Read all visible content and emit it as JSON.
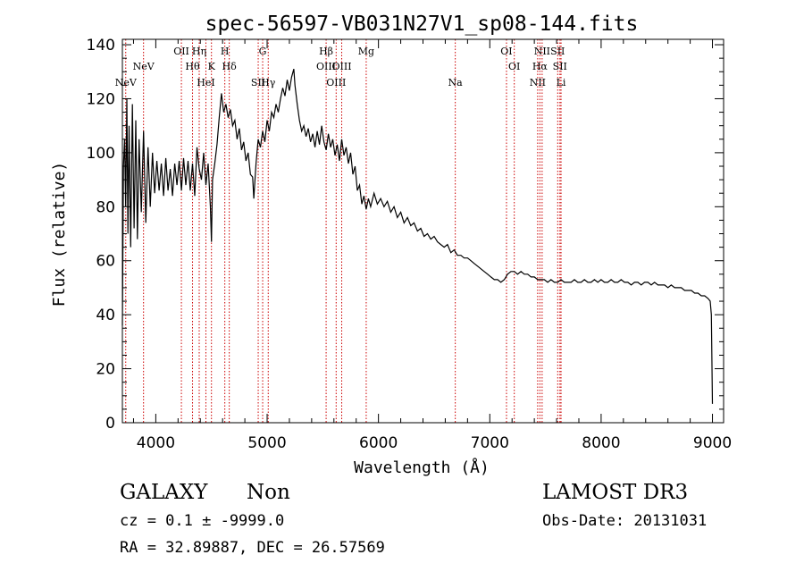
{
  "chart_data": {
    "type": "line",
    "title": "spec-56597-VB031N27V1_sp08-144.fits",
    "xlabel": "Wavelength (Å)",
    "ylabel": "Flux (relative)",
    "xlim": [
      3700,
      9100
    ],
    "ylim": [
      0,
      142
    ],
    "x_ticks": [
      4000,
      5000,
      6000,
      7000,
      8000,
      9000
    ],
    "x_tick_labels": [
      "4000",
      "5000",
      "6000",
      "7000",
      "8000",
      "9000"
    ],
    "y_ticks": [
      0,
      20,
      40,
      60,
      80,
      100,
      120,
      140
    ],
    "y_tick_labels": [
      "0",
      "20",
      "40",
      "60",
      "80",
      "100",
      "120",
      "140"
    ],
    "line_color": "#000000",
    "marker_color": "#cc0000",
    "spectrum_points": [
      [
        3700,
        36
      ],
      [
        3710,
        95
      ],
      [
        3720,
        105
      ],
      [
        3730,
        80
      ],
      [
        3740,
        120
      ],
      [
        3750,
        70
      ],
      [
        3760,
        110
      ],
      [
        3775,
        65
      ],
      [
        3790,
        118
      ],
      [
        3805,
        72
      ],
      [
        3820,
        112
      ],
      [
        3835,
        68
      ],
      [
        3850,
        105
      ],
      [
        3870,
        78
      ],
      [
        3890,
        108
      ],
      [
        3910,
        74
      ],
      [
        3930,
        102
      ],
      [
        3950,
        80
      ],
      [
        3970,
        100
      ],
      [
        3990,
        85
      ],
      [
        4010,
        97
      ],
      [
        4030,
        86
      ],
      [
        4050,
        96
      ],
      [
        4070,
        84
      ],
      [
        4090,
        98
      ],
      [
        4110,
        86
      ],
      [
        4130,
        94
      ],
      [
        4150,
        84
      ],
      [
        4170,
        96
      ],
      [
        4190,
        88
      ],
      [
        4210,
        97
      ],
      [
        4230,
        86
      ],
      [
        4250,
        98
      ],
      [
        4270,
        88
      ],
      [
        4290,
        97
      ],
      [
        4310,
        86
      ],
      [
        4330,
        96
      ],
      [
        4350,
        84
      ],
      [
        4370,
        102
      ],
      [
        4390,
        94
      ],
      [
        4410,
        90
      ],
      [
        4430,
        100
      ],
      [
        4450,
        88
      ],
      [
        4470,
        96
      ],
      [
        4490,
        80
      ],
      [
        4500,
        67
      ],
      [
        4510,
        90
      ],
      [
        4530,
        96
      ],
      [
        4550,
        103
      ],
      [
        4570,
        113
      ],
      [
        4590,
        122
      ],
      [
        4610,
        115
      ],
      [
        4630,
        118
      ],
      [
        4650,
        113
      ],
      [
        4670,
        116
      ],
      [
        4690,
        110
      ],
      [
        4710,
        112
      ],
      [
        4730,
        105
      ],
      [
        4750,
        109
      ],
      [
        4770,
        101
      ],
      [
        4790,
        104
      ],
      [
        4810,
        97
      ],
      [
        4830,
        100
      ],
      [
        4850,
        92
      ],
      [
        4870,
        91
      ],
      [
        4880,
        83
      ],
      [
        4900,
        96
      ],
      [
        4920,
        105
      ],
      [
        4940,
        102
      ],
      [
        4960,
        108
      ],
      [
        4980,
        104
      ],
      [
        5000,
        112
      ],
      [
        5020,
        108
      ],
      [
        5040,
        115
      ],
      [
        5060,
        113
      ],
      [
        5080,
        118
      ],
      [
        5100,
        115
      ],
      [
        5120,
        120
      ],
      [
        5140,
        124
      ],
      [
        5160,
        121
      ],
      [
        5180,
        127
      ],
      [
        5200,
        123
      ],
      [
        5220,
        128
      ],
      [
        5240,
        131
      ],
      [
        5250,
        125
      ],
      [
        5270,
        118
      ],
      [
        5290,
        112
      ],
      [
        5310,
        108
      ],
      [
        5330,
        110
      ],
      [
        5350,
        106
      ],
      [
        5370,
        109
      ],
      [
        5390,
        104
      ],
      [
        5410,
        107
      ],
      [
        5430,
        102
      ],
      [
        5450,
        108
      ],
      [
        5470,
        103
      ],
      [
        5490,
        110
      ],
      [
        5510,
        104
      ],
      [
        5530,
        101
      ],
      [
        5550,
        107
      ],
      [
        5570,
        102
      ],
      [
        5590,
        105
      ],
      [
        5610,
        99
      ],
      [
        5630,
        103
      ],
      [
        5650,
        97
      ],
      [
        5670,
        105
      ],
      [
        5690,
        99
      ],
      [
        5710,
        102
      ],
      [
        5730,
        96
      ],
      [
        5750,
        100
      ],
      [
        5770,
        92
      ],
      [
        5790,
        95
      ],
      [
        5810,
        86
      ],
      [
        5830,
        88
      ],
      [
        5850,
        81
      ],
      [
        5870,
        84
      ],
      [
        5890,
        79
      ],
      [
        5910,
        83
      ],
      [
        5930,
        80
      ],
      [
        5960,
        85
      ],
      [
        5990,
        81
      ],
      [
        6020,
        83
      ],
      [
        6050,
        80
      ],
      [
        6080,
        82
      ],
      [
        6110,
        78
      ],
      [
        6140,
        80
      ],
      [
        6170,
        76
      ],
      [
        6200,
        78
      ],
      [
        6230,
        74
      ],
      [
        6260,
        76
      ],
      [
        6290,
        73
      ],
      [
        6320,
        74
      ],
      [
        6350,
        71
      ],
      [
        6380,
        72
      ],
      [
        6410,
        69
      ],
      [
        6440,
        70
      ],
      [
        6470,
        68
      ],
      [
        6500,
        69
      ],
      [
        6530,
        67
      ],
      [
        6560,
        66
      ],
      [
        6590,
        65
      ],
      [
        6620,
        66
      ],
      [
        6650,
        63
      ],
      [
        6680,
        64
      ],
      [
        6710,
        62
      ],
      [
        6740,
        62
      ],
      [
        6770,
        61
      ],
      [
        6800,
        61
      ],
      [
        6830,
        60
      ],
      [
        6860,
        59
      ],
      [
        6890,
        58
      ],
      [
        6920,
        57
      ],
      [
        6950,
        56
      ],
      [
        6980,
        55
      ],
      [
        7010,
        54
      ],
      [
        7040,
        53
      ],
      [
        7070,
        53
      ],
      [
        7100,
        52
      ],
      [
        7130,
        53
      ],
      [
        7160,
        55
      ],
      [
        7190,
        56
      ],
      [
        7220,
        56
      ],
      [
        7250,
        55
      ],
      [
        7280,
        56
      ],
      [
        7310,
        55
      ],
      [
        7340,
        55
      ],
      [
        7370,
        54
      ],
      [
        7400,
        54
      ],
      [
        7430,
        53
      ],
      [
        7460,
        53
      ],
      [
        7490,
        53
      ],
      [
        7520,
        52
      ],
      [
        7550,
        53
      ],
      [
        7580,
        52
      ],
      [
        7610,
        52
      ],
      [
        7640,
        53
      ],
      [
        7670,
        52
      ],
      [
        7700,
        52
      ],
      [
        7730,
        52
      ],
      [
        7760,
        53
      ],
      [
        7790,
        52
      ],
      [
        7820,
        52
      ],
      [
        7850,
        53
      ],
      [
        7880,
        52
      ],
      [
        7910,
        52
      ],
      [
        7940,
        53
      ],
      [
        7970,
        52
      ],
      [
        8000,
        53
      ],
      [
        8030,
        52
      ],
      [
        8060,
        52
      ],
      [
        8090,
        53
      ],
      [
        8120,
        52
      ],
      [
        8150,
        52
      ],
      [
        8180,
        53
      ],
      [
        8210,
        52
      ],
      [
        8240,
        52
      ],
      [
        8270,
        51
      ],
      [
        8300,
        52
      ],
      [
        8330,
        52
      ],
      [
        8360,
        51
      ],
      [
        8390,
        52
      ],
      [
        8420,
        52
      ],
      [
        8450,
        51
      ],
      [
        8480,
        52
      ],
      [
        8510,
        51
      ],
      [
        8540,
        51
      ],
      [
        8570,
        51
      ],
      [
        8600,
        50
      ],
      [
        8630,
        51
      ],
      [
        8660,
        50
      ],
      [
        8690,
        50
      ],
      [
        8720,
        50
      ],
      [
        8750,
        49
      ],
      [
        8780,
        49
      ],
      [
        8810,
        49
      ],
      [
        8840,
        48
      ],
      [
        8870,
        48
      ],
      [
        8900,
        47
      ],
      [
        8930,
        47
      ],
      [
        8960,
        46
      ],
      [
        8980,
        45
      ],
      [
        8990,
        40
      ],
      [
        9000,
        7
      ]
    ],
    "lines": [
      {
        "label": "NeV",
        "wavelength": 3346,
        "row": 3
      },
      {
        "label": "NeV",
        "wavelength": 3426,
        "row": 2
      },
      {
        "label": "OII",
        "wavelength": 3728,
        "row": 1
      },
      {
        "label": "Hθ",
        "wavelength": 3798,
        "row": 2
      },
      {
        "label": "Hη",
        "wavelength": 3836,
        "row": 1
      },
      {
        "label": "HeI",
        "wavelength": 3889,
        "row": 3
      },
      {
        "label": "K",
        "wavelength": 3934,
        "row": 2
      },
      {
        "label": "H",
        "wavelength": 3969,
        "row": 1
      },
      {
        "label": "Hδ",
        "wavelength": 4102,
        "row": 2
      },
      {
        "label": "SII",
        "wavelength": 4072,
        "row": 3
      },
      {
        "label": "G",
        "wavelength": 4304,
        "row": 1
      },
      {
        "label": "Hγ",
        "wavelength": 4341,
        "row": 3
      },
      {
        "label": "OIII",
        "wavelength": 4363,
        "row": 2
      },
      {
        "label": "Hβ",
        "wavelength": 4861,
        "row": 1
      },
      {
        "label": "OIII",
        "wavelength": 4959,
        "row": 3
      },
      {
        "label": "OIII",
        "wavelength": 5007,
        "row": 2
      },
      {
        "label": "Mg",
        "wavelength": 5175,
        "row": 1
      },
      {
        "label": "Na",
        "wavelength": 5894,
        "row": 3
      },
      {
        "label": "OI",
        "wavelength": 6300,
        "row": 1
      },
      {
        "label": "OI",
        "wavelength": 6363,
        "row": 2
      },
      {
        "label": "NII",
        "wavelength": 6548,
        "row": 3
      },
      {
        "label": "Hα",
        "wavelength": 6563,
        "row": 2
      },
      {
        "label": "NII",
        "wavelength": 6584,
        "row": 1
      },
      {
        "label": "SII",
        "wavelength": 6717,
        "row": 1
      },
      {
        "label": "SII",
        "wavelength": 6731,
        "row": 2
      },
      {
        "label": "Li",
        "wavelength": 6708,
        "row": 3
      }
    ],
    "redshift_marker_offset_note": "markers drawn at observed positions",
    "marker_wavelengths": [
      3730,
      3890,
      4230,
      4330,
      4390,
      4450,
      4500,
      4620,
      4660,
      4920,
      4960,
      5010,
      5530,
      5620,
      5670,
      5890,
      6690,
      7150,
      7220,
      7430,
      7450,
      7470,
      7610,
      7630,
      7640
    ]
  },
  "info": {
    "object_class": "GALAXY",
    "subclass": "Non",
    "survey": "LAMOST DR3",
    "cz_line": "cz = 0.1 ± -9999.0",
    "obs_date": "Obs-Date: 20131031",
    "radec_line": "RA =  32.89887, DEC =  26.57569"
  }
}
